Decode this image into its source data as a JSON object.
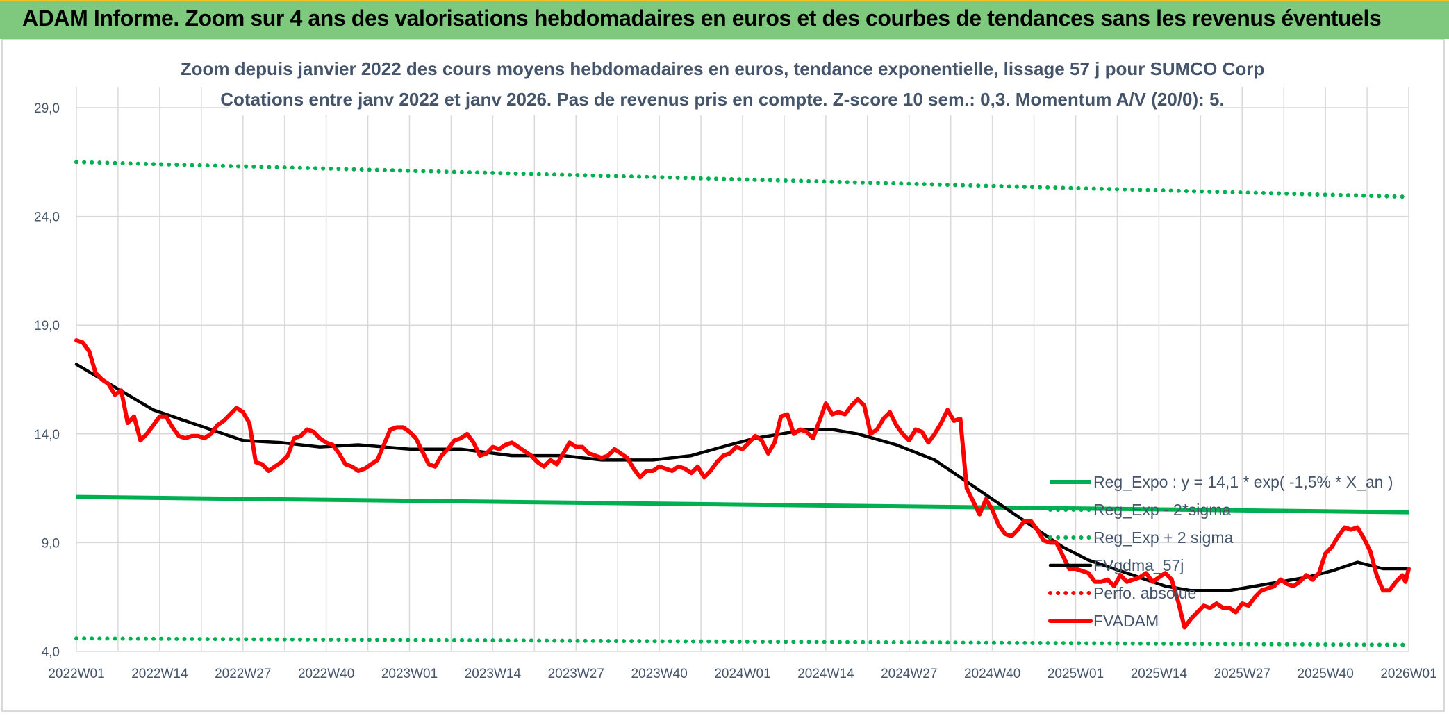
{
  "header": {
    "title": "ADAM Informe. Zoom sur 4 ans des valorisations hebdomadaires en euros et des courbes de tendances sans les revenus éventuels"
  },
  "chart_data": {
    "type": "line",
    "title_line1": "Zoom depuis janvier 2022 des cours moyens hebdomadaires en euros, tendance exponentielle, lissage 57 j pour SUMCO Corp",
    "title_line2": "Cotations entre janv 2022 et janv 2026. Pas de revenus pris en compte. Z-score 10 sem.: 0,3. Momentum A/V (20/0): 5.",
    "y_ticks": [
      "4,0",
      "9,0",
      "14,0",
      "19,0",
      "24,0",
      "29,0"
    ],
    "ylim": [
      4,
      29
    ],
    "x_ticks": [
      "2022W01",
      "2022W14",
      "2022W27",
      "2022W40",
      "2023W01",
      "2023W14",
      "2023W27",
      "2023W40",
      "2024W01",
      "2024W14",
      "2024W27",
      "2024W40",
      "2025W01",
      "2025W14",
      "2025W27",
      "2025W40",
      "2026W01"
    ],
    "x_unit": "weeks since 2022W01",
    "xlim": [
      0,
      208
    ],
    "grid": true,
    "legend_position": "bottom-right",
    "colors": {
      "green": "#00b050",
      "black": "#000000",
      "red": "#ff0000",
      "text": "#44546a",
      "grid": "#d9d9d9"
    },
    "series": [
      {
        "name": "Reg_Expo : y = 14,1 * exp( -1,5% *  X_an )",
        "style": "solid",
        "color": "#00b050",
        "points": [
          [
            0,
            11.1
          ],
          [
            208,
            10.4
          ]
        ]
      },
      {
        "name": "Reg_Exp - 2*sigma",
        "style": "dotted",
        "color": "#00b050",
        "points": [
          [
            0,
            4.6
          ],
          [
            208,
            4.3
          ]
        ]
      },
      {
        "name": "Reg_Exp + 2 sigma",
        "style": "dotted",
        "color": "#00b050",
        "points": [
          [
            0,
            26.5
          ],
          [
            208,
            24.9
          ]
        ]
      },
      {
        "name": "FVgdma_57j",
        "style": "solid",
        "color": "#000000",
        "points": [
          [
            0,
            17.2
          ],
          [
            4,
            16.5
          ],
          [
            8,
            15.8
          ],
          [
            12,
            15.1
          ],
          [
            16,
            14.7
          ],
          [
            20,
            14.3
          ],
          [
            26,
            13.7
          ],
          [
            32,
            13.6
          ],
          [
            38,
            13.4
          ],
          [
            44,
            13.5
          ],
          [
            52,
            13.3
          ],
          [
            60,
            13.3
          ],
          [
            68,
            13.0
          ],
          [
            76,
            13.0
          ],
          [
            82,
            12.8
          ],
          [
            90,
            12.8
          ],
          [
            96,
            13.0
          ],
          [
            102,
            13.5
          ],
          [
            106,
            13.8
          ],
          [
            110,
            14.0
          ],
          [
            114,
            14.2
          ],
          [
            118,
            14.2
          ],
          [
            122,
            14.0
          ],
          [
            128,
            13.5
          ],
          [
            134,
            12.8
          ],
          [
            138,
            12.0
          ],
          [
            142,
            11.2
          ],
          [
            146,
            10.4
          ],
          [
            150,
            9.6
          ],
          [
            154,
            8.8
          ],
          [
            158,
            8.2
          ],
          [
            162,
            7.8
          ],
          [
            166,
            7.4
          ],
          [
            170,
            7.0
          ],
          [
            174,
            6.8
          ],
          [
            180,
            6.8
          ],
          [
            186,
            7.1
          ],
          [
            192,
            7.4
          ],
          [
            196,
            7.7
          ],
          [
            200,
            8.1
          ],
          [
            204,
            7.8
          ],
          [
            208,
            7.8
          ]
        ]
      },
      {
        "name": "Perfo. absolue",
        "style": "dotted",
        "color": "#ff0000",
        "points": []
      },
      {
        "name": "FVADAM",
        "style": "solid",
        "color": "#ff0000",
        "points": [
          [
            0,
            18.3
          ],
          [
            1,
            18.2
          ],
          [
            2,
            17.8
          ],
          [
            3,
            16.8
          ],
          [
            4,
            16.5
          ],
          [
            5,
            16.3
          ],
          [
            6,
            15.8
          ],
          [
            7,
            16.0
          ],
          [
            8,
            14.5
          ],
          [
            9,
            14.8
          ],
          [
            10,
            13.7
          ],
          [
            11,
            14.0
          ],
          [
            12,
            14.4
          ],
          [
            13,
            14.8
          ],
          [
            14,
            14.8
          ],
          [
            15,
            14.3
          ],
          [
            16,
            13.9
          ],
          [
            17,
            13.8
          ],
          [
            18,
            13.9
          ],
          [
            19,
            13.9
          ],
          [
            20,
            13.8
          ],
          [
            21,
            14.0
          ],
          [
            22,
            14.4
          ],
          [
            23,
            14.6
          ],
          [
            24,
            14.9
          ],
          [
            25,
            15.2
          ],
          [
            26,
            15.0
          ],
          [
            27,
            14.5
          ],
          [
            28,
            12.7
          ],
          [
            29,
            12.6
          ],
          [
            30,
            12.3
          ],
          [
            31,
            12.5
          ],
          [
            32,
            12.7
          ],
          [
            33,
            13.0
          ],
          [
            34,
            13.8
          ],
          [
            35,
            13.9
          ],
          [
            36,
            14.2
          ],
          [
            37,
            14.1
          ],
          [
            38,
            13.8
          ],
          [
            39,
            13.6
          ],
          [
            40,
            13.5
          ],
          [
            41,
            13.1
          ],
          [
            42,
            12.6
          ],
          [
            43,
            12.5
          ],
          [
            44,
            12.3
          ],
          [
            45,
            12.4
          ],
          [
            46,
            12.6
          ],
          [
            47,
            12.8
          ],
          [
            48,
            13.5
          ],
          [
            49,
            14.2
          ],
          [
            50,
            14.3
          ],
          [
            51,
            14.3
          ],
          [
            52,
            14.1
          ],
          [
            53,
            13.8
          ],
          [
            54,
            13.2
          ],
          [
            55,
            12.6
          ],
          [
            56,
            12.5
          ],
          [
            57,
            13.0
          ],
          [
            58,
            13.3
          ],
          [
            59,
            13.7
          ],
          [
            60,
            13.8
          ],
          [
            61,
            14.0
          ],
          [
            62,
            13.6
          ],
          [
            63,
            13.0
          ],
          [
            64,
            13.1
          ],
          [
            65,
            13.4
          ],
          [
            66,
            13.3
          ],
          [
            67,
            13.5
          ],
          [
            68,
            13.6
          ],
          [
            69,
            13.4
          ],
          [
            70,
            13.2
          ],
          [
            71,
            13.0
          ],
          [
            72,
            12.7
          ],
          [
            73,
            12.5
          ],
          [
            74,
            12.8
          ],
          [
            75,
            12.6
          ],
          [
            76,
            13.1
          ],
          [
            77,
            13.6
          ],
          [
            78,
            13.4
          ],
          [
            79,
            13.4
          ],
          [
            80,
            13.1
          ],
          [
            81,
            13.0
          ],
          [
            82,
            12.9
          ],
          [
            83,
            13.0
          ],
          [
            84,
            13.3
          ],
          [
            85,
            13.1
          ],
          [
            86,
            12.9
          ],
          [
            87,
            12.4
          ],
          [
            88,
            12.0
          ],
          [
            89,
            12.3
          ],
          [
            90,
            12.3
          ],
          [
            91,
            12.5
          ],
          [
            92,
            12.4
          ],
          [
            93,
            12.3
          ],
          [
            94,
            12.5
          ],
          [
            95,
            12.4
          ],
          [
            96,
            12.2
          ],
          [
            97,
            12.5
          ],
          [
            98,
            12.0
          ],
          [
            99,
            12.3
          ],
          [
            100,
            12.7
          ],
          [
            101,
            13.0
          ],
          [
            102,
            13.1
          ],
          [
            103,
            13.4
          ],
          [
            104,
            13.3
          ],
          [
            105,
            13.6
          ],
          [
            106,
            13.9
          ],
          [
            107,
            13.7
          ],
          [
            108,
            13.1
          ],
          [
            109,
            13.6
          ],
          [
            110,
            14.8
          ],
          [
            111,
            14.9
          ],
          [
            112,
            14.0
          ],
          [
            113,
            14.2
          ],
          [
            114,
            14.1
          ],
          [
            115,
            13.8
          ],
          [
            116,
            14.6
          ],
          [
            117,
            15.4
          ],
          [
            118,
            14.9
          ],
          [
            119,
            15.0
          ],
          [
            120,
            14.9
          ],
          [
            121,
            15.3
          ],
          [
            122,
            15.6
          ],
          [
            123,
            15.3
          ],
          [
            124,
            14.0
          ],
          [
            125,
            14.2
          ],
          [
            126,
            14.7
          ],
          [
            127,
            15.0
          ],
          [
            128,
            14.4
          ],
          [
            129,
            14.0
          ],
          [
            130,
            13.7
          ],
          [
            131,
            14.2
          ],
          [
            132,
            14.1
          ],
          [
            133,
            13.6
          ],
          [
            134,
            14.0
          ],
          [
            135,
            14.5
          ],
          [
            136,
            15.1
          ],
          [
            137,
            14.6
          ],
          [
            138,
            14.7
          ],
          [
            139,
            11.5
          ],
          [
            140,
            10.9
          ],
          [
            141,
            10.3
          ],
          [
            142,
            11.0
          ],
          [
            143,
            10.5
          ],
          [
            144,
            9.8
          ],
          [
            145,
            9.4
          ],
          [
            146,
            9.3
          ],
          [
            147,
            9.6
          ],
          [
            148,
            10.0
          ],
          [
            149,
            10.0
          ],
          [
            150,
            9.6
          ],
          [
            151,
            9.1
          ],
          [
            152,
            9.0
          ],
          [
            153,
            9.0
          ],
          [
            154,
            8.4
          ],
          [
            155,
            7.8
          ],
          [
            156,
            7.8
          ],
          [
            157,
            7.7
          ],
          [
            158,
            7.6
          ],
          [
            159,
            7.2
          ],
          [
            160,
            7.2
          ],
          [
            161,
            7.3
          ],
          [
            162,
            7.0
          ],
          [
            163,
            7.5
          ],
          [
            164,
            7.2
          ],
          [
            165,
            7.3
          ],
          [
            166,
            7.4
          ],
          [
            167,
            7.6
          ],
          [
            168,
            7.2
          ],
          [
            169,
            7.4
          ],
          [
            170,
            7.6
          ],
          [
            171,
            7.3
          ],
          [
            172,
            6.3
          ],
          [
            173,
            5.1
          ],
          [
            174,
            5.5
          ],
          [
            175,
            5.8
          ],
          [
            176,
            6.1
          ],
          [
            177,
            6.0
          ],
          [
            178,
            6.2
          ],
          [
            179,
            6.0
          ],
          [
            180,
            6.0
          ],
          [
            181,
            5.8
          ],
          [
            182,
            6.2
          ],
          [
            183,
            6.1
          ],
          [
            184,
            6.5
          ],
          [
            185,
            6.8
          ],
          [
            186,
            6.9
          ],
          [
            187,
            7.0
          ],
          [
            188,
            7.3
          ],
          [
            189,
            7.1
          ],
          [
            190,
            7.0
          ],
          [
            191,
            7.2
          ],
          [
            192,
            7.5
          ],
          [
            193,
            7.3
          ],
          [
            194,
            7.6
          ],
          [
            195,
            8.5
          ],
          [
            196,
            8.8
          ],
          [
            197,
            9.3
          ],
          [
            198,
            9.7
          ],
          [
            199,
            9.6
          ],
          [
            200,
            9.7
          ],
          [
            201,
            9.2
          ],
          [
            202,
            8.6
          ],
          [
            203,
            7.5
          ],
          [
            204,
            6.8
          ],
          [
            205,
            6.8
          ],
          [
            206,
            7.2
          ],
          [
            207,
            7.5
          ],
          [
            207.5,
            7.2
          ],
          [
            208,
            7.8
          ]
        ]
      }
    ]
  }
}
